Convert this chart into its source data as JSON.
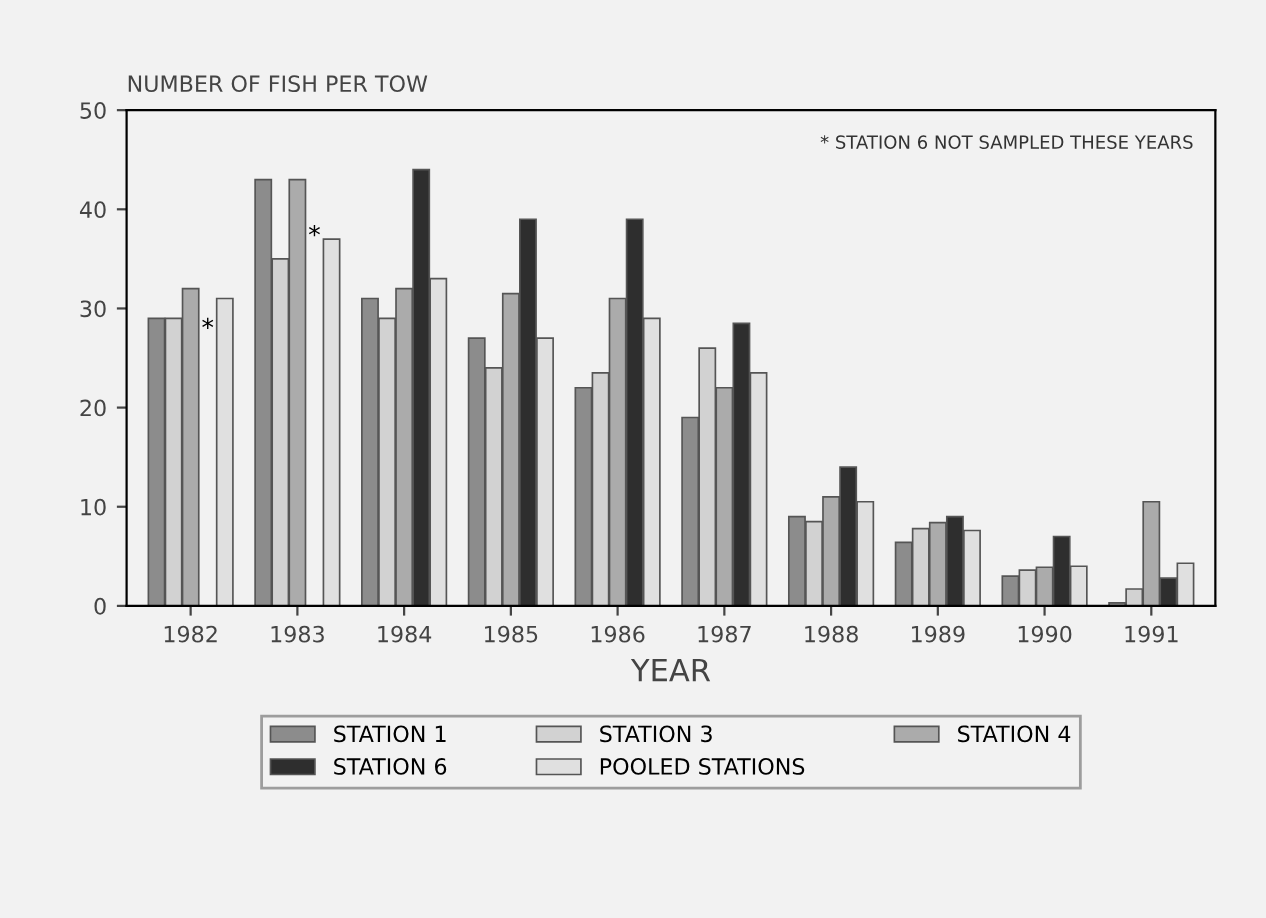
{
  "chart_data": {
    "type": "bar",
    "title": "NUMBER OF FISH PER TOW",
    "xlabel": "YEAR",
    "categories": [
      "1982",
      "1983",
      "1984",
      "1985",
      "1986",
      "1987",
      "1988",
      "1989",
      "1990",
      "1991"
    ],
    "series": [
      {
        "name": "STATION 1",
        "color": "#8c8c8c",
        "values": [
          29,
          43,
          31,
          27,
          22,
          19,
          9,
          6.4,
          3,
          0.3
        ]
      },
      {
        "name": "STATION 3",
        "color": "#d2d2d2",
        "values": [
          29,
          35,
          29,
          24,
          23.5,
          26,
          8.5,
          7.8,
          3.6,
          1.7
        ]
      },
      {
        "name": "STATION 4",
        "color": "#ababab",
        "values": [
          32,
          43,
          32,
          31.5,
          31,
          22,
          11,
          8.4,
          3.9,
          10.5
        ]
      },
      {
        "name": "STATION 6",
        "color": "#2e2e2e",
        "values": [
          null,
          null,
          44,
          39,
          39,
          28.5,
          14,
          9,
          7,
          2.8
        ]
      },
      {
        "name": "POOLED STATIONS",
        "color": "#e0e0e0",
        "values": [
          31,
          37,
          33,
          27,
          29,
          23.5,
          10.5,
          7.6,
          4,
          4.3
        ]
      }
    ],
    "ylim": [
      0,
      50
    ],
    "yticks": [
      0,
      10,
      20,
      30,
      40,
      50
    ],
    "grid": false,
    "legend": "bottom",
    "annotations": [
      "*",
      "*",
      "* STATION 6 NOT SAMPLED THESE YEARS"
    ]
  }
}
